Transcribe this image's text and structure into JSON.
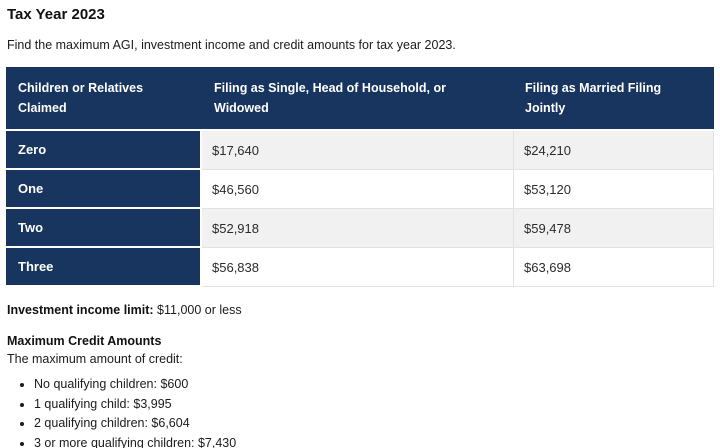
{
  "page": {
    "title": "Tax Year 2023",
    "subtitle": "Find the maximum AGI, investment income and credit amounts for tax year 2023."
  },
  "table": {
    "columns": [
      "Children or Relatives Claimed",
      "Filing as Single, Head of Household, or Widowed",
      "Filing as Married Filing Jointly"
    ],
    "rows": [
      {
        "label": "Zero",
        "single": "$17,640",
        "married": "$24,210"
      },
      {
        "label": "One",
        "single": "$46,560",
        "married": "$53,120"
      },
      {
        "label": "Two",
        "single": "$52,918",
        "married": "$59,478"
      },
      {
        "label": "Three",
        "single": "$56,838",
        "married": "$63,698"
      }
    ]
  },
  "notes": {
    "investment_label": "Investment income limit:",
    "investment_value": "$11,000 or less",
    "credit_heading": "Maximum Credit Amounts",
    "credit_intro": "The maximum amount of credit:",
    "credit_items": [
      "No qualifying children: $600",
      "1 qualifying child: $3,995",
      "2 qualifying children: $6,604",
      "3 or more qualifying children: $7,430"
    ]
  },
  "colors": {
    "header_navy": "#17355f",
    "stripe_gray": "#f1f1f2",
    "border_gray": "#e2e2e2",
    "text": "#1b1b1b"
  }
}
